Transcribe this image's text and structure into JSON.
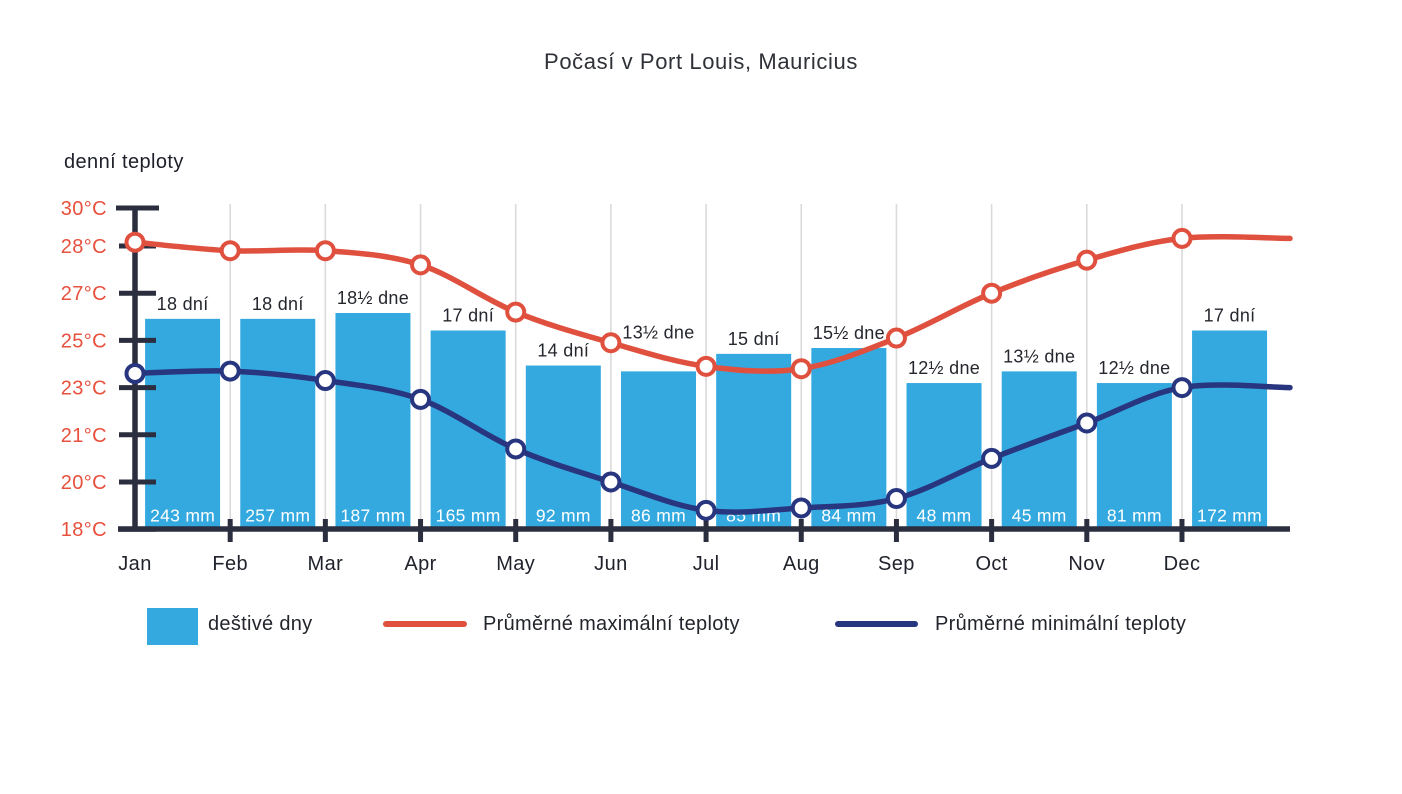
{
  "title": "Počasí v Port Louis, Mauricius",
  "y_axis_caption": "denní teploty",
  "legend": {
    "rainy_days_label": "deštivé dny",
    "max_temp_label": "Průměrné maximální teploty",
    "min_temp_label": "Průměrné minimální teploty"
  },
  "colors": {
    "bar_blue": "#33a9e0",
    "line_red": "#e0503e",
    "line_navy": "#28357f",
    "axis_dark": "#2b2e3f",
    "grid_gray": "#dadada",
    "text_dark": "#25272e",
    "y_label_red": "#e8503e",
    "bar_value_white": "#ffffff"
  },
  "chart_data": {
    "type": "composite-bar-line",
    "title": "Počasí v Port Louis, Mauricius",
    "categories": [
      "Jan",
      "Feb",
      "Mar",
      "Apr",
      "May",
      "Jun",
      "Jul",
      "Aug",
      "Sep",
      "Oct",
      "Nov",
      "Dec"
    ],
    "y_axis": {
      "caption": "denní teploty",
      "tick_labels": [
        "30°C",
        "28°C",
        "27°C",
        "25°C",
        "23°C",
        "21°C",
        "20°C",
        "18°C"
      ],
      "tick_values": [
        30,
        28,
        27,
        25,
        23,
        21,
        20,
        18
      ],
      "grid": "vertical-monthly"
    },
    "series": [
      {
        "name": "deštivé dny",
        "type": "bar",
        "unit": "dní",
        "values": [
          18,
          18,
          18.5,
          17,
          14,
          13.5,
          15,
          15.5,
          12.5,
          13.5,
          12.5,
          17
        ],
        "day_labels": [
          "18 dní",
          "18 dní",
          "18½ dne",
          "17 dní",
          "14 dní",
          "13½ dne",
          "15 dní",
          "15½ dne",
          "12½ dne",
          "13½ dne",
          "12½ dne",
          "17 dní"
        ],
        "precip_mm": [
          243,
          257,
          187,
          165,
          92,
          86,
          85,
          84,
          48,
          45,
          81,
          172
        ],
        "mm_labels": [
          "243 mm",
          "257 mm",
          "187 mm",
          "165 mm",
          "92 mm",
          "86 mm",
          "85 mm",
          "84 mm",
          "48 mm",
          "45 mm",
          "81 mm",
          "172 mm"
        ]
      },
      {
        "name": "Průměrné maximální teploty",
        "type": "line",
        "unit": "°C",
        "values": [
          28.2,
          27.9,
          27.9,
          27.6,
          26.2,
          24.9,
          23.9,
          23.8,
          25.1,
          27.0,
          27.7,
          28.4
        ]
      },
      {
        "name": "Průměrné minimální teploty",
        "type": "line",
        "unit": "°C",
        "values": [
          23.6,
          23.7,
          23.3,
          22.5,
          20.7,
          20.0,
          18.8,
          18.9,
          19.3,
          20.5,
          21.5,
          23.0
        ]
      }
    ]
  }
}
